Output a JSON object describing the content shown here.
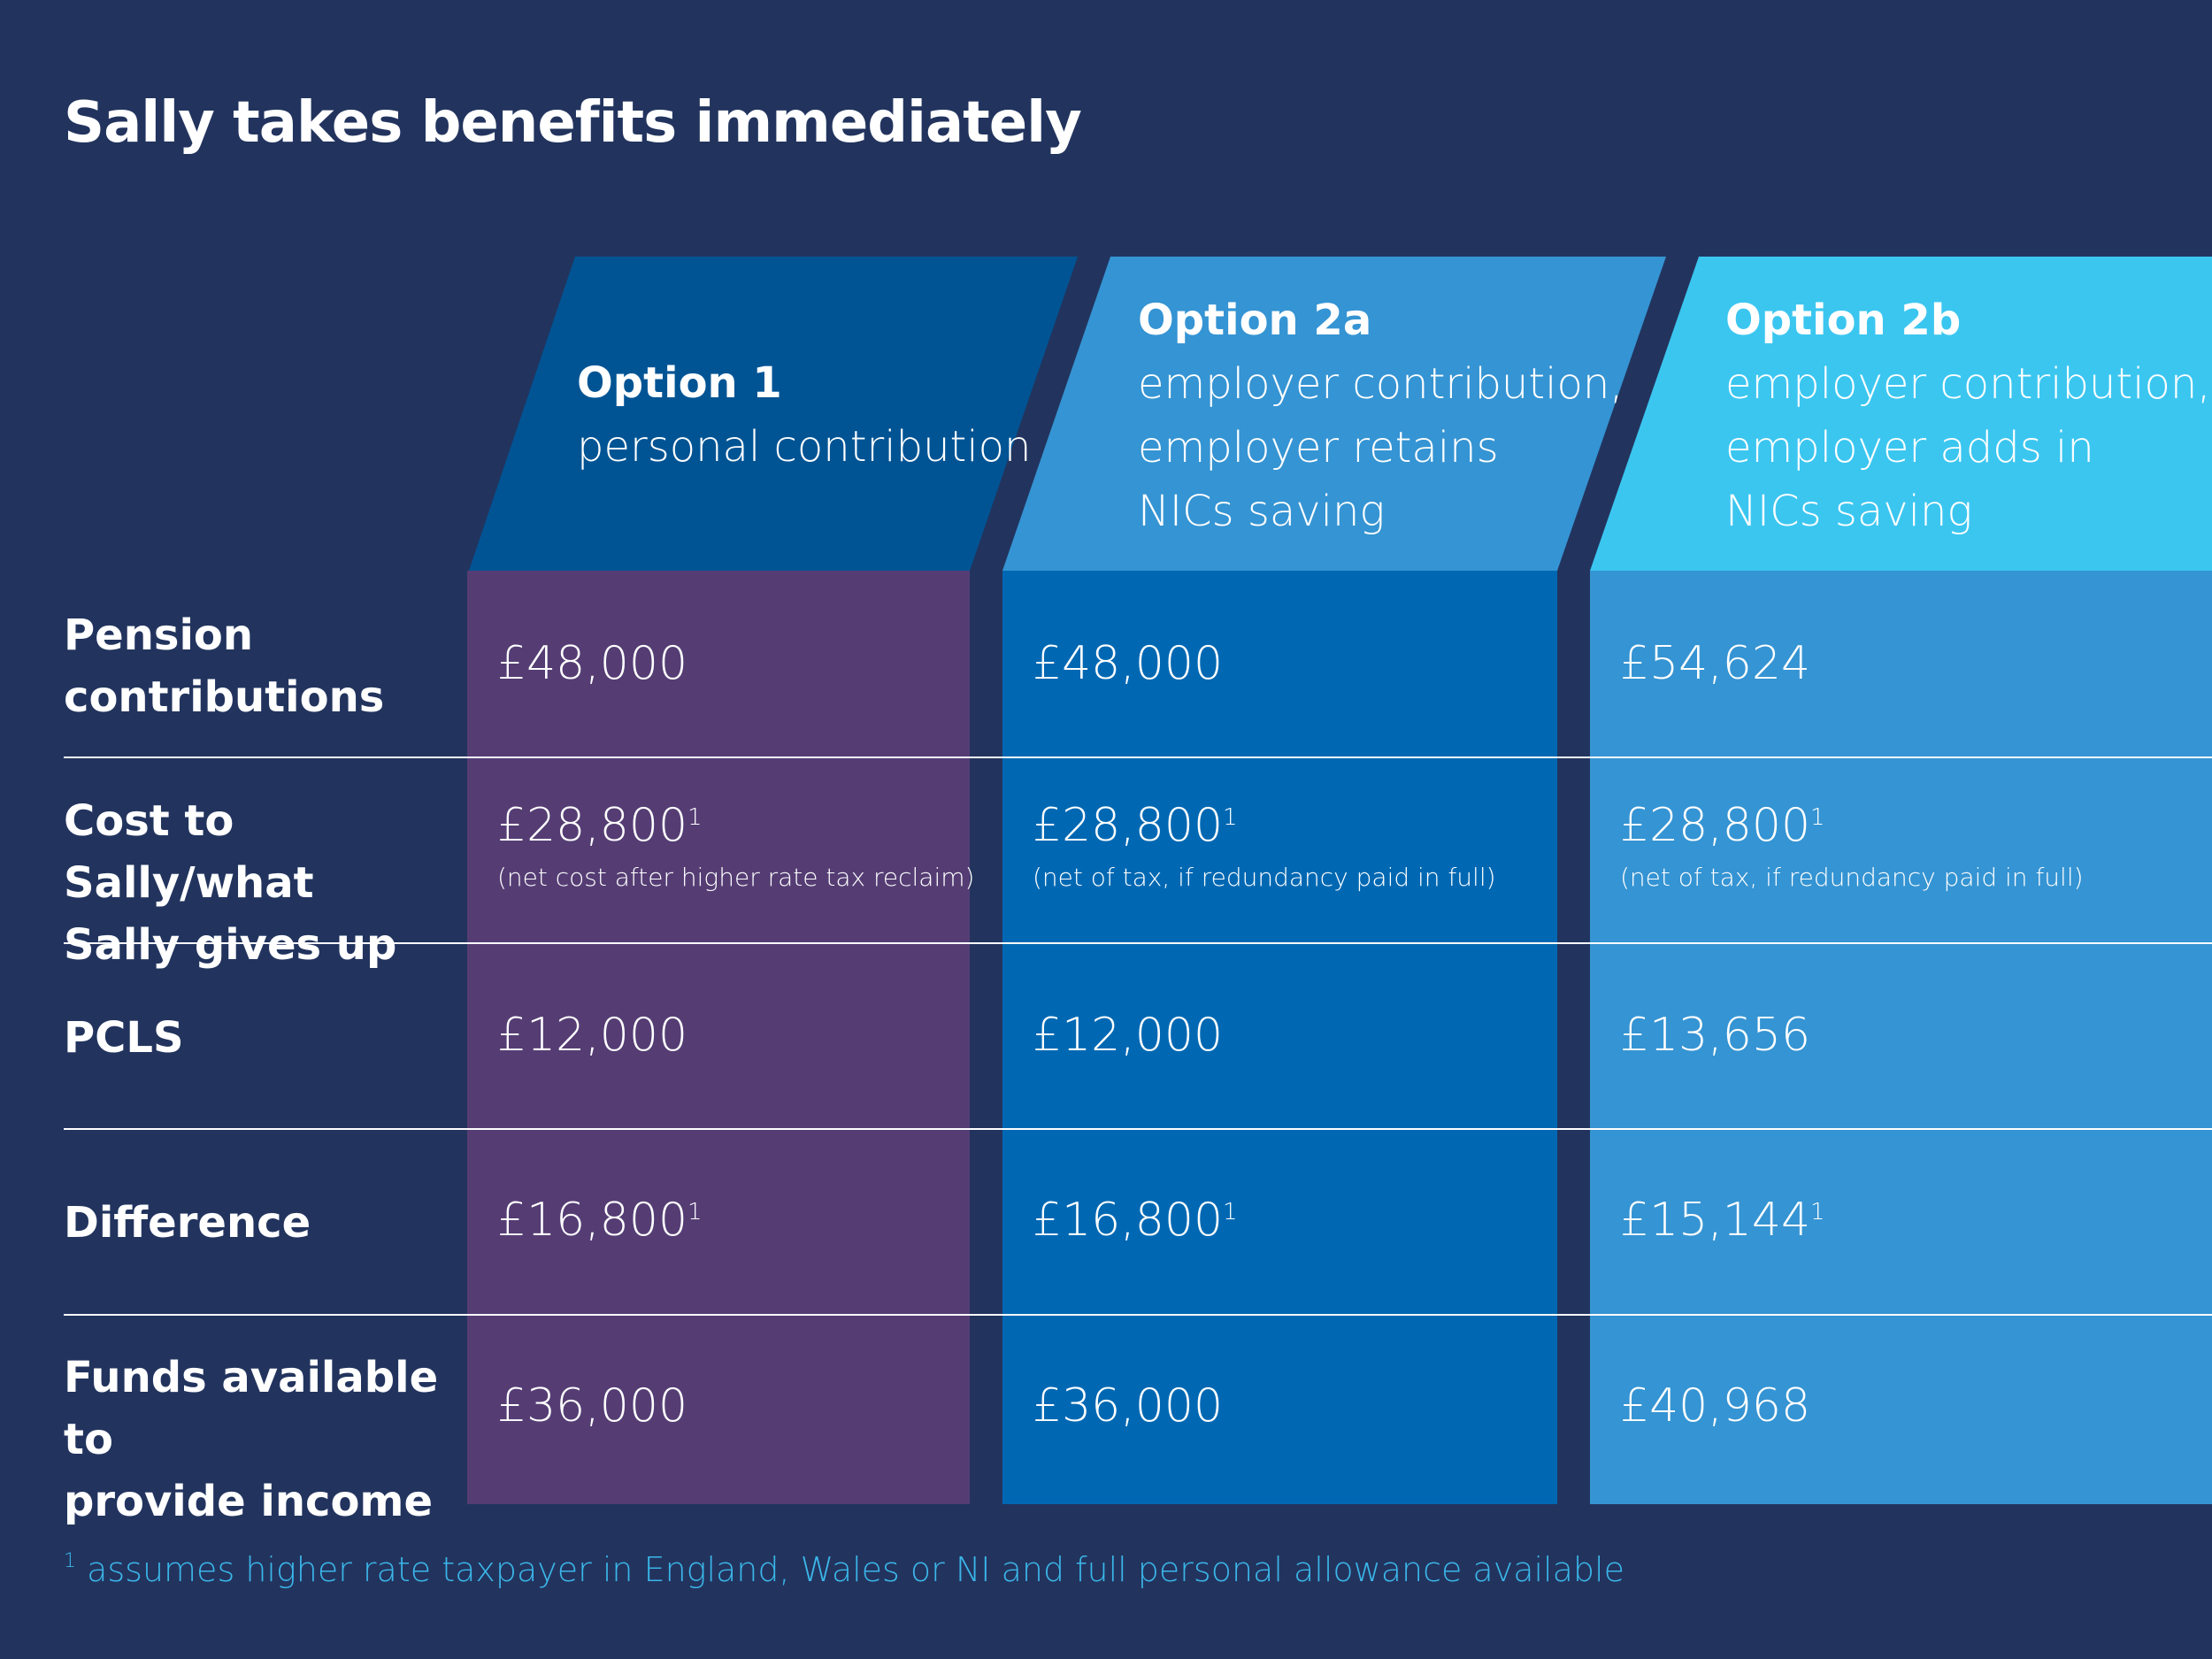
{
  "title": "Sally takes benefits immediately",
  "colors": {
    "background": "#22345e",
    "option1_header": "#005494",
    "option1_body": "#553d74",
    "option2a_header": "#3594d3",
    "option2a_body": "#0068b3",
    "option2b_header": "#3bc6f0",
    "option2b_body": "#3594d3",
    "footnote": "#3bb6e9"
  },
  "columns": [
    {
      "option": "Option 1",
      "lines": [
        "personal contribution"
      ]
    },
    {
      "option": "Option 2a",
      "lines": [
        "employer contribution,",
        "employer retains",
        "NICs saving"
      ]
    },
    {
      "option": "Option 2b",
      "lines": [
        "employer contribution,",
        "employer adds in",
        "NICs saving"
      ]
    }
  ],
  "rows": [
    {
      "label_lines": [
        "Pension",
        "contributions"
      ],
      "cells": [
        {
          "value": "£48,000",
          "sup": "",
          "note": ""
        },
        {
          "value": "£48,000",
          "sup": "",
          "note": ""
        },
        {
          "value": "£54,624",
          "sup": "",
          "note": ""
        }
      ]
    },
    {
      "label_lines": [
        "Cost to Sally/what",
        "Sally gives up"
      ],
      "cells": [
        {
          "value": "£28,800",
          "sup": "1",
          "note": "(net cost after higher rate tax reclaim)"
        },
        {
          "value": "£28,800",
          "sup": "1",
          "note": "(net of tax, if redundancy paid in full)"
        },
        {
          "value": "£28,800",
          "sup": "1",
          "note": "(net of tax, if redundancy paid in full)"
        }
      ]
    },
    {
      "label_lines": [
        "PCLS"
      ],
      "cells": [
        {
          "value": "£12,000",
          "sup": "",
          "note": ""
        },
        {
          "value": "£12,000",
          "sup": "",
          "note": ""
        },
        {
          "value": "£13,656",
          "sup": "",
          "note": ""
        }
      ]
    },
    {
      "label_lines": [
        "Difference"
      ],
      "cells": [
        {
          "value": "£16,800",
          "sup": "1",
          "note": ""
        },
        {
          "value": "£16,800",
          "sup": "1",
          "note": ""
        },
        {
          "value": "£15,144",
          "sup": "1",
          "note": ""
        }
      ]
    },
    {
      "label_lines": [
        "Funds available to",
        "provide income"
      ],
      "cells": [
        {
          "value": "£36,000",
          "sup": "",
          "note": ""
        },
        {
          "value": "£36,000",
          "sup": "",
          "note": ""
        },
        {
          "value": "£40,968",
          "sup": "",
          "note": ""
        }
      ]
    }
  ],
  "footnote": {
    "marker": "1",
    "text": " assumes higher rate taxpayer in England, Wales or NI and full personal allowance available"
  }
}
